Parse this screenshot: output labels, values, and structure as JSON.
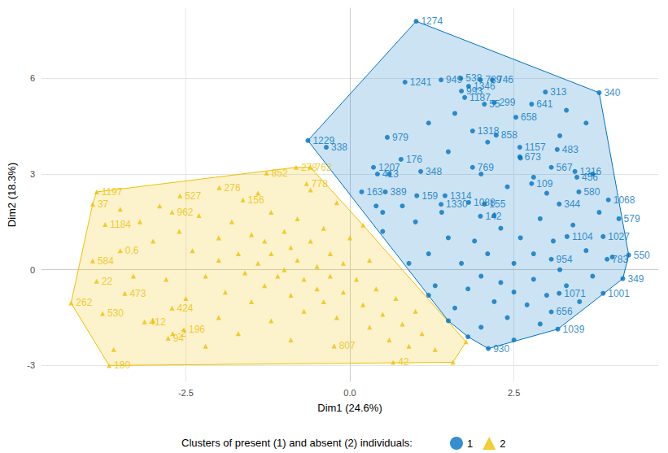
{
  "chart_data": {
    "type": "scatter",
    "xlabel": "Dim1 (24.6%)",
    "ylabel": "Dim2 (18.3%)",
    "legend_title": "Clusters of present (1) and absent (2) individuals:",
    "legend": "bottom",
    "grid": true,
    "xlim": [
      -4.7,
      4.7
    ],
    "xticks": [
      -2.5,
      {
        "value": 0,
        "label": "0.0"
      },
      2.5
    ],
    "ylim": [
      -3.5,
      8.2
    ],
    "yticks": [
      -3,
      0,
      3,
      6
    ],
    "series": [
      {
        "name": "1",
        "color": "#0073C2",
        "marker": "circle",
        "x": [
          1.01,
          3.8,
          4.25,
          4.16,
          3.17,
          2.11,
          -0.64,
          0.84,
          1.69,
          1.99,
          2.17,
          1.39,
          1.81,
          1.7,
          2.98,
          2.2,
          2.05,
          2.77,
          1.75,
          2.53,
          1.87,
          2.23,
          2.59,
          3.16,
          2.59,
          0.57,
          -0.36,
          0.78,
          0.36,
          0.42,
          1.08,
          1.87,
          3.43,
          3.46,
          3.07,
          0.18,
          0.54,
          1.02,
          1.45,
          2.77,
          3.49,
          2.05,
          1.39,
          1.81,
          3.19,
          1.99,
          3.94,
          4.1,
          3.86,
          3.31,
          3.07,
          3.92,
          3.19,
          3.86,
          3.07,
          1.0,
          1.2,
          1.3,
          1.5,
          1.6,
          1.7,
          1.8,
          1.9,
          2.0,
          2.0,
          2.1,
          2.2,
          2.3,
          2.3,
          2.4,
          2.5,
          2.5,
          2.6,
          2.7,
          2.8,
          2.8,
          2.9,
          3.0,
          3.1,
          3.2,
          3.3,
          3.4,
          3.5,
          3.6,
          3.7,
          3.8,
          4.0,
          2.4,
          2.8,
          3.2,
          3.6,
          2.0,
          1.5,
          1.2,
          0.8,
          0.5,
          0.9,
          1.2,
          1.5,
          2.6,
          3.0,
          2.2,
          1.4,
          0.5,
          2.9,
          1.8,
          2.5,
          3.7,
          2.1,
          1.6,
          3.3,
          0.6,
          0.4
        ],
        "values": [
          7.79,
          5.55,
          0.46,
          -0.28,
          -1.86,
          -2.47,
          4.05,
          5.88,
          6.0,
          5.95,
          5.95,
          5.95,
          5.75,
          5.6,
          5.57,
          5.24,
          5.19,
          5.19,
          5.4,
          4.78,
          4.35,
          4.22,
          3.84,
          3.77,
          3.54,
          4.15,
          3.84,
          3.46,
          3.21,
          3.0,
          3.08,
          3.21,
          3.08,
          2.9,
          3.21,
          2.44,
          2.44,
          2.32,
          2.32,
          2.7,
          2.44,
          2.06,
          2.05,
          2.11,
          2.06,
          1.68,
          2.19,
          1.6,
          1.04,
          1.04,
          0.33,
          0.33,
          -0.74,
          -0.74,
          -1.32,
          1.5,
          0.5,
          -0.5,
          1.0,
          -1.2,
          0.2,
          -0.6,
          0.9,
          -1.8,
          -0.2,
          0.5,
          -1.0,
          1.3,
          -0.4,
          -1.5,
          0.2,
          -0.7,
          1.0,
          -1.1,
          0.5,
          -0.3,
          1.6,
          -0.8,
          0.9,
          0.0,
          -0.5,
          1.4,
          -1.0,
          0.6,
          -0.2,
          1.8,
          0.4,
          2.6,
          2.9,
          4.2,
          4.6,
          3.0,
          3.7,
          4.6,
          2.0,
          1.2,
          0.2,
          -0.8,
          -1.6,
          3.5,
          2.4,
          1.7,
          1.8,
          1.8,
          -1.7,
          -2.1,
          -2.2,
          3.0,
          4.0,
          4.9,
          5.0,
          3.0,
          2.0
        ],
        "labels": [
          "1274",
          "340",
          "550",
          "349",
          "1039",
          "930",
          "1229",
          "1241",
          "538",
          "789",
          "746",
          "949",
          "1346",
          "993",
          "313",
          "299",
          "55",
          "641",
          "1187",
          "658",
          "1318",
          "858",
          "1157",
          "483",
          "673",
          "979",
          "338",
          "176",
          "1207",
          "413",
          "348",
          "769",
          "1316",
          "456",
          "567",
          "163",
          "389",
          "159",
          "1314",
          "109",
          "580",
          "155",
          "1330",
          "1088",
          "344",
          "142",
          "1068",
          "579",
          "1027",
          "1104",
          "954",
          "783",
          "1071",
          "1001",
          "656",
          null,
          null,
          null,
          null,
          null,
          null,
          null,
          null,
          null,
          null,
          null,
          null,
          null,
          null,
          null,
          null,
          null,
          null,
          null,
          null,
          null,
          null,
          null,
          null,
          null,
          null,
          null,
          null,
          null,
          null,
          null,
          null,
          null,
          null,
          null,
          null,
          null,
          null,
          null,
          null,
          null,
          null,
          null,
          null,
          null,
          null,
          null,
          null,
          null,
          null,
          null,
          null,
          null,
          null,
          null,
          null,
          null,
          null
        ]
      },
      {
        "name": "2",
        "color": "#EFC000",
        "marker": "triangle",
        "x": [
          -3.86,
          -2.59,
          -1.99,
          -2.71,
          -1.63,
          -1.27,
          -0.82,
          -0.6,
          -0.66,
          -3.92,
          -3.73,
          -3.92,
          -3.86,
          -3.43,
          -4.25,
          -3.77,
          -2.71,
          -3.13,
          -2.53,
          -2.77,
          -3.67,
          -0.24,
          0.66,
          -3.5,
          -3.2,
          -3.0,
          -2.9,
          -2.6,
          -2.4,
          -2.3,
          -2.2,
          -2.0,
          -2.0,
          -1.9,
          -1.8,
          -1.7,
          -1.6,
          -1.5,
          -1.5,
          -1.4,
          -1.3,
          -1.3,
          -1.2,
          -1.2,
          -1.1,
          -1.0,
          -1.0,
          -0.9,
          -0.9,
          -0.8,
          -0.8,
          -0.7,
          -0.7,
          -0.6,
          -0.5,
          -0.5,
          -0.4,
          -0.4,
          -0.3,
          -0.3,
          -0.2,
          -0.1,
          -0.1,
          0.0,
          0.1,
          0.2,
          0.3,
          0.3,
          0.4,
          0.5,
          0.6,
          0.7,
          0.8,
          0.9,
          1.0,
          1.1,
          1.3,
          1.57,
          1.77,
          -2.8,
          -3.3,
          -2.5,
          -3.0,
          -2.0,
          -1.7,
          -1.2,
          -0.9,
          -3.6,
          -2.2,
          -1.4,
          -0.2,
          0.2,
          -0.6,
          -3.5,
          -2.7
        ],
        "values": [
          2.44,
          2.32,
          2.57,
          1.81,
          2.19,
          3.03,
          3.21,
          3.21,
          2.7,
          2.06,
          1.42,
          0.28,
          -0.36,
          -0.74,
          -1.04,
          -1.37,
          -1.2,
          -1.63,
          -1.88,
          -2.14,
          -3.0,
          -2.39,
          -2.9,
          1.9,
          1.5,
          0.9,
          2.0,
          1.2,
          0.6,
          1.7,
          -0.2,
          1.0,
          0.3,
          -0.7,
          1.5,
          0.5,
          -0.1,
          1.1,
          -1.0,
          0.2,
          0.9,
          -0.5,
          1.8,
          0.5,
          -0.2,
          1.2,
          0.0,
          -0.8,
          0.7,
          0.3,
          1.6,
          -0.3,
          -1.3,
          0.9,
          0.1,
          -0.6,
          1.3,
          -1.0,
          0.5,
          -0.2,
          -1.5,
          0.2,
          -0.7,
          1.0,
          -0.3,
          -1.1,
          0.3,
          -1.8,
          -0.6,
          -1.4,
          -2.2,
          -0.9,
          -1.7,
          -2.4,
          -1.3,
          -2.0,
          -2.5,
          -2.9,
          -2.26,
          -0.3,
          -0.2,
          -0.9,
          -1.6,
          -1.5,
          -2.0,
          -1.6,
          -2.2,
          -2.5,
          -2.4,
          2.4,
          2.1,
          1.4,
          2.5,
          0.6,
          -2.0
        ],
        "labels": [
          "1197",
          "527",
          "276",
          "962",
          "156",
          "852",
          "278",
          "762",
          "778",
          "37",
          "1184",
          "584",
          "22",
          "473",
          "262",
          "530",
          "424",
          "412",
          "196",
          "94",
          "180",
          "807",
          "42",
          null,
          null,
          null,
          null,
          null,
          null,
          null,
          null,
          null,
          null,
          null,
          null,
          null,
          null,
          null,
          null,
          null,
          null,
          null,
          null,
          null,
          null,
          null,
          null,
          null,
          null,
          null,
          null,
          null,
          null,
          null,
          null,
          null,
          null,
          null,
          null,
          null,
          null,
          null,
          null,
          null,
          null,
          null,
          null,
          null,
          null,
          null,
          null,
          null,
          null,
          null,
          null,
          null,
          null,
          null,
          null,
          null,
          null,
          null,
          null,
          null,
          null,
          null,
          null,
          null,
          null,
          null,
          null,
          null,
          null
        ]
      }
    ]
  }
}
